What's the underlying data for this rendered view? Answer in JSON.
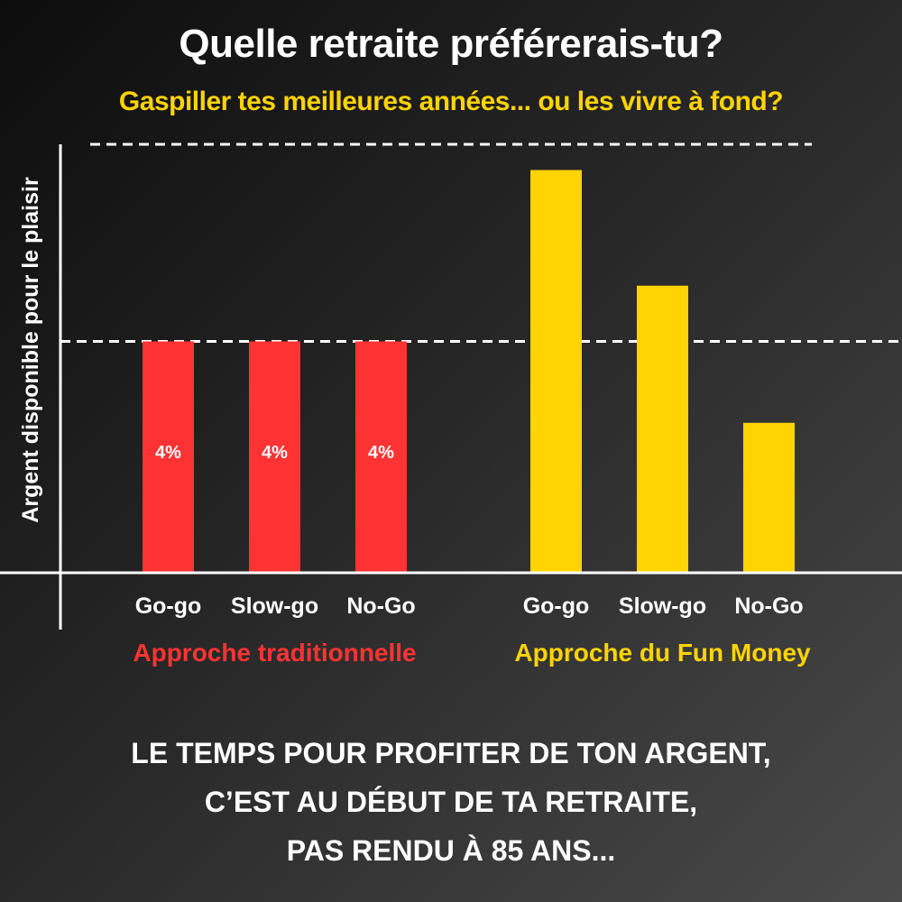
{
  "header": {
    "title": "Quelle retraite préférerais-tu?",
    "subtitle": "Gaspiller tes meilleures années... ou les vivre à fond?"
  },
  "chart_data": {
    "type": "bar",
    "ylabel": "Argent disponible pour le plaisir",
    "ylim": [
      0,
      100
    ],
    "reference_lines": [
      {
        "value": 100,
        "style": "dashed"
      },
      {
        "value": 54,
        "style": "dashed"
      }
    ],
    "groups": [
      {
        "name": "Approche traditionnelle",
        "color": "#ff3333",
        "categories": [
          "Go-go",
          "Slow-go",
          "No-Go"
        ],
        "values": [
          54,
          54,
          54
        ],
        "bar_labels": [
          "4%",
          "4%",
          "4%"
        ]
      },
      {
        "name": "Approche du Fun Money",
        "color": "#ffd400",
        "categories": [
          "Go-go",
          "Slow-go",
          "No-Go"
        ],
        "values": [
          94,
          67,
          35
        ],
        "bar_labels": []
      }
    ]
  },
  "footer": {
    "lines": [
      "LE TEMPS POUR PROFITER DE TON ARGENT,",
      "C’EST AU DÉBUT DE TA RETRAITE,",
      "PAS RENDU À 85 ANS..."
    ]
  }
}
